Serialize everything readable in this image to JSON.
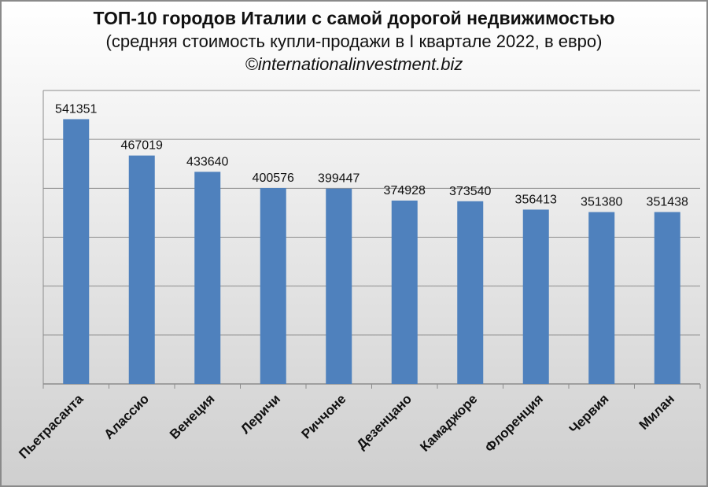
{
  "chart_data": {
    "type": "bar",
    "title": "ТОП-10 городов Италии с самой дорогой недвижимостью",
    "subtitle": "(средняя стоимость купли-продажи в I квартале 2022, в евро)",
    "credit": "©internationalinvestment.biz",
    "categories": [
      "Пьетрасанта",
      "Алассио",
      "Венеция",
      "Леричи",
      "Риччоне",
      "Дезенцано",
      "Камаджоре",
      "Флоренция",
      "Червия",
      "Милан"
    ],
    "values": [
      541351,
      467019,
      433640,
      400576,
      399447,
      374928,
      373540,
      356413,
      351380,
      351438
    ],
    "value_labels": [
      "541351",
      "467019",
      "433640",
      "400576",
      "399447",
      "374928",
      "373540",
      "356413",
      "351380",
      "351438"
    ],
    "ylim": [
      0,
      600000
    ],
    "grid": true,
    "bar_color": "#4f81bd"
  }
}
